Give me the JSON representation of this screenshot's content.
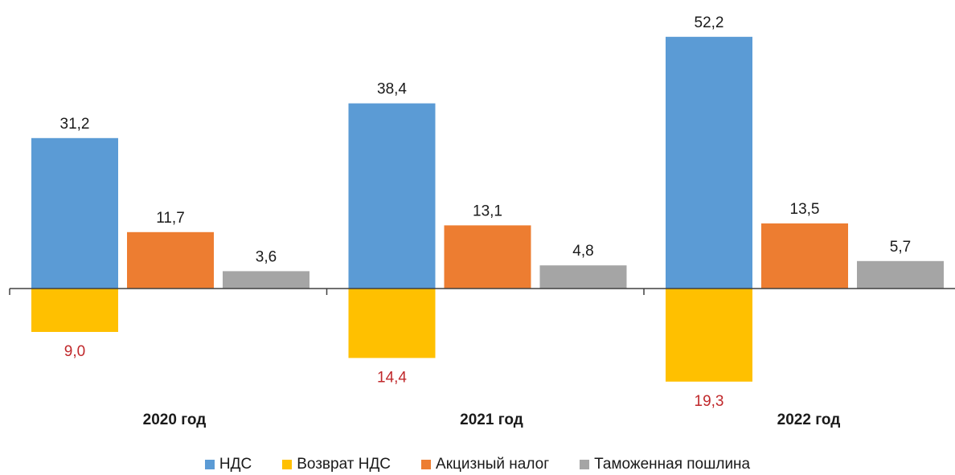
{
  "chart_data": {
    "type": "bar",
    "categories": [
      "2020 год",
      "2021 год",
      "2022 год"
    ],
    "series": [
      {
        "name": "НДС",
        "color": "#5b9bd5",
        "values": [
          31.2,
          38.4,
          52.2
        ],
        "labels": [
          "31,2",
          "38,4",
          "52,2"
        ],
        "label_color": "#1a1a1a"
      },
      {
        "name": "Возврат НДС",
        "color": "#ffc000",
        "values": [
          -9.0,
          -14.4,
          -19.3
        ],
        "labels": [
          "9,0",
          "14,4",
          "19,3"
        ],
        "label_color": "#c0282b"
      },
      {
        "name": "Акцизный налог",
        "color": "#ed7d31",
        "values": [
          11.7,
          13.1,
          13.5
        ],
        "labels": [
          "11,7",
          "13,1",
          "13,5"
        ],
        "label_color": "#1a1a1a"
      },
      {
        "name": "Таможенная пошлина",
        "color": "#a5a5a5",
        "values": [
          3.6,
          4.8,
          5.7
        ],
        "labels": [
          "3,6",
          "4,8",
          "5,7"
        ],
        "label_color": "#1a1a1a"
      }
    ],
    "bar_layout": "vat-and-refund-share-column",
    "title": "",
    "xlabel": "",
    "ylabel": "",
    "ylim": [
      -22,
      58
    ],
    "grid": false,
    "legend_position": "bottom"
  }
}
